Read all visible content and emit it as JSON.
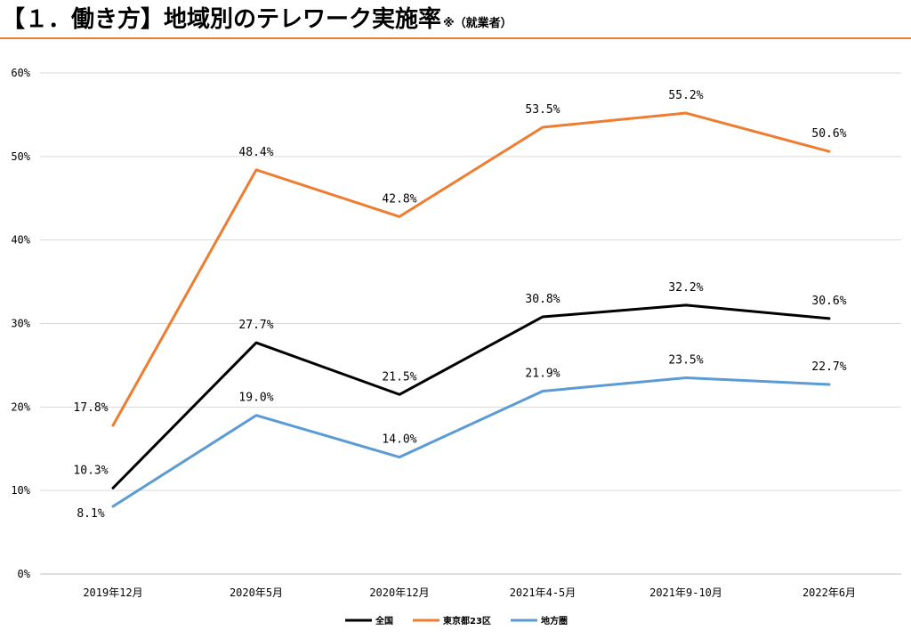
{
  "page": {
    "title": "【１．働き方】地域別のテレワーク実施率",
    "title_note": "※（就業者）"
  },
  "colors": {
    "accent": "#ED7D31",
    "grid": "#D9D9D9",
    "axis": "#BFBFBF"
  },
  "chart_data": {
    "type": "line",
    "title": "地域別のテレワーク実施率",
    "xlabel": "",
    "ylabel": "",
    "ylim": [
      0,
      60
    ],
    "yticks": [
      0,
      10,
      20,
      30,
      40,
      50,
      60
    ],
    "ytick_labels": [
      "0%",
      "10%",
      "20%",
      "30%",
      "40%",
      "50%",
      "60%"
    ],
    "categories": [
      "2019年12月",
      "2020年5月",
      "2020年12月",
      "2021年4-5月",
      "2021年9-10月",
      "2022年6月"
    ],
    "grid": true,
    "legend_position": "bottom",
    "series": [
      {
        "name": "全国",
        "color": "#000000",
        "values": [
          10.3,
          27.7,
          21.5,
          30.8,
          32.2,
          30.6
        ],
        "labels": [
          "10.3%",
          "27.7%",
          "21.5%",
          "30.8%",
          "32.2%",
          "30.6%"
        ]
      },
      {
        "name": "東京都23区",
        "color": "#ED7D31",
        "values": [
          17.8,
          48.4,
          42.8,
          53.5,
          55.2,
          50.6
        ],
        "labels": [
          "17.8%",
          "48.4%",
          "42.8%",
          "53.5%",
          "55.2%",
          "50.6%"
        ]
      },
      {
        "name": "地方圏",
        "color": "#5B9BD5",
        "values": [
          8.1,
          19.0,
          14.0,
          21.9,
          23.5,
          22.7
        ],
        "labels": [
          "8.1%",
          "19.0%",
          "14.0%",
          "21.9%",
          "23.5%",
          "22.7%"
        ]
      }
    ]
  }
}
